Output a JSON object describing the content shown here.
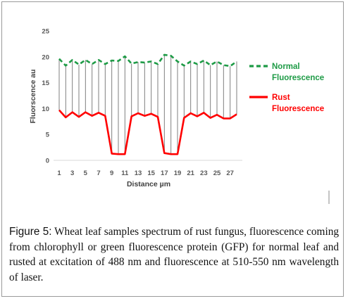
{
  "figure": {
    "label": "Figure 5:",
    "caption": " Wheat leaf samples spectrum of rust fungus, fluorescence coming from chlorophyll or green fluorescence protein (GFP) for normal leaf and rusted at excitation of 488 nm and fluorescence at 510-550 nm wavelength of laser."
  },
  "colors": {
    "normal": "#1e9b46",
    "rust": "#ff0000",
    "droplines": "#7f7f7f"
  },
  "chart_data": {
    "type": "line",
    "xlabel": "Distance µm",
    "ylabel": "Fluorscence au",
    "ylim": [
      0,
      25
    ],
    "yticks": [
      0,
      5,
      10,
      15,
      20,
      25
    ],
    "x": [
      1,
      2,
      3,
      4,
      5,
      6,
      7,
      8,
      9,
      10,
      11,
      12,
      13,
      14,
      15,
      16,
      17,
      18,
      19,
      20,
      21,
      22,
      23,
      24,
      25,
      26,
      27,
      28
    ],
    "xtick_labels": [
      "1",
      "3",
      "5",
      "7",
      "9",
      "11",
      "13",
      "15",
      "17",
      "19",
      "21",
      "23",
      "25",
      "27"
    ],
    "grid": false,
    "drop_lines": true,
    "legend": {
      "placement": "right",
      "entries": [
        "Normal Fluorescence",
        "Rust Fluorescence"
      ]
    },
    "series": [
      {
        "name": "Normal Fluorescence",
        "style": "dashed",
        "legend_lines": [
          "Normal",
          "Fluorescence"
        ],
        "values": [
          19.6,
          18.3,
          19.4,
          18.5,
          19.4,
          18.6,
          19.4,
          18.6,
          19.3,
          19.2,
          20.1,
          18.7,
          19.0,
          18.9,
          19.1,
          18.6,
          20.4,
          20.2,
          19.1,
          18.3,
          19.1,
          18.6,
          19.3,
          18.4,
          19.1,
          18.4,
          18.2,
          19.1
        ]
      },
      {
        "name": "Rust Fluorescence",
        "style": "solid",
        "legend_lines": [
          "Rust",
          "Fluorescence"
        ],
        "values": [
          9.7,
          8.3,
          9.3,
          8.4,
          9.3,
          8.6,
          9.2,
          8.6,
          1.3,
          1.2,
          1.2,
          8.5,
          9.1,
          8.6,
          9.0,
          8.4,
          1.4,
          1.2,
          1.2,
          8.2,
          9.1,
          8.5,
          9.2,
          8.2,
          8.8,
          8.1,
          8.1,
          8.9
        ]
      }
    ]
  }
}
